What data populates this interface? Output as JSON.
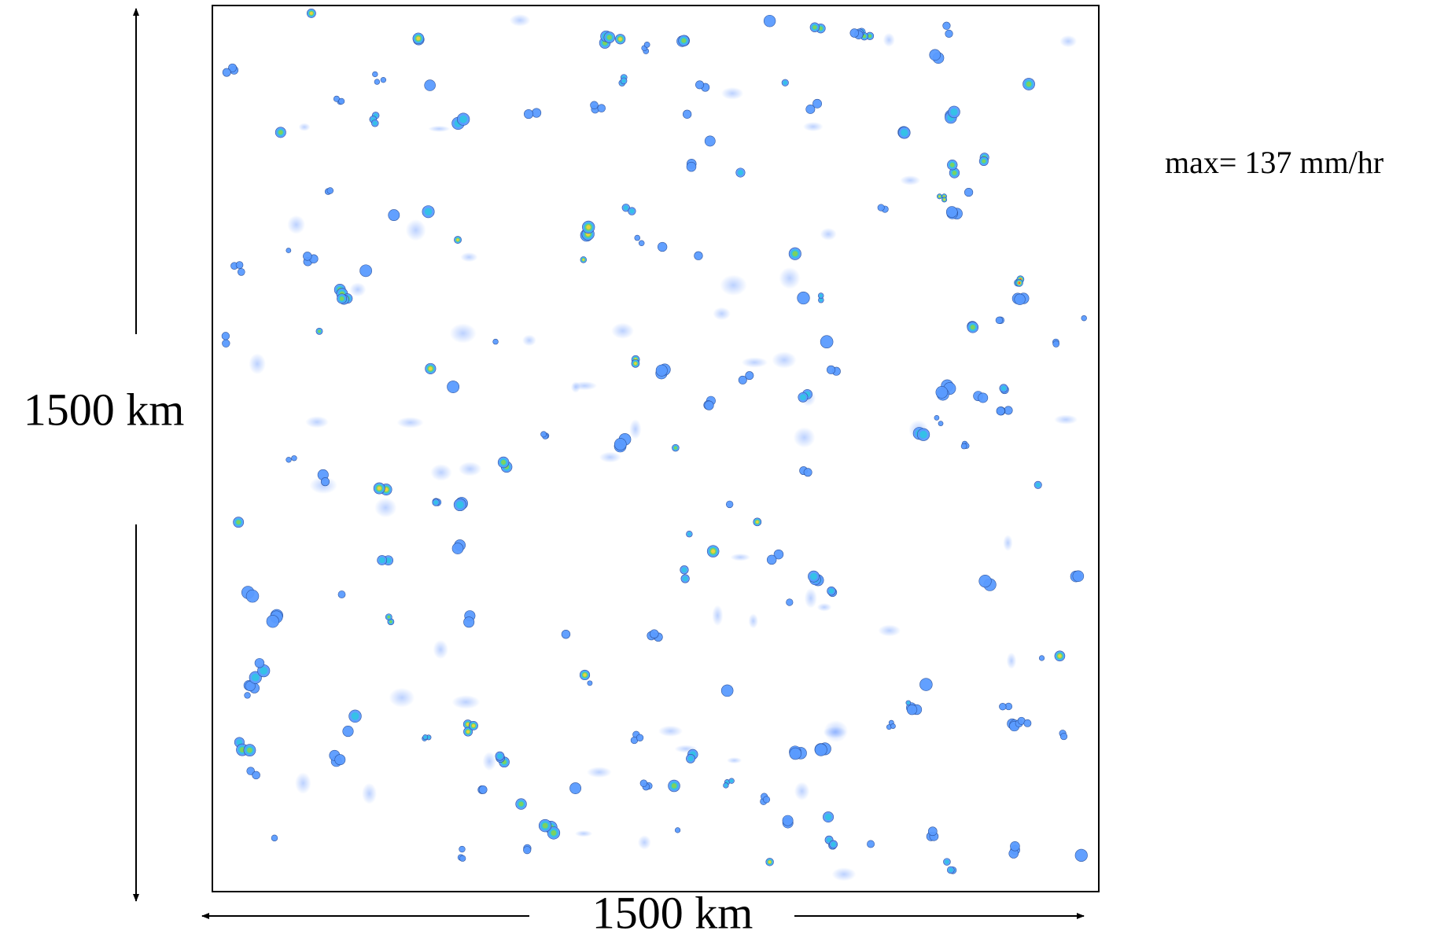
{
  "labels": {
    "vertical": "1500 km",
    "horizontal": "1500 km",
    "max": "max= 137 mm/hr"
  }
}
